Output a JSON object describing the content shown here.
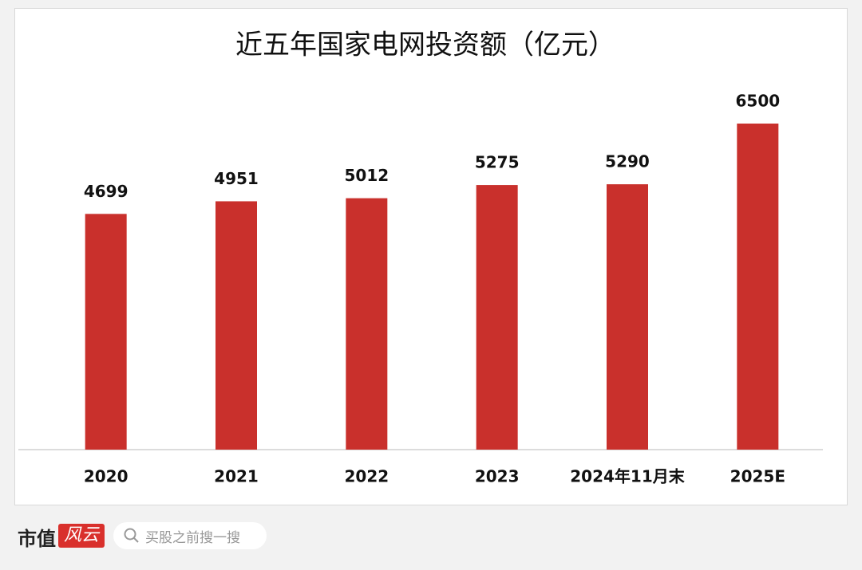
{
  "chart_data": {
    "type": "bar",
    "title": "近五年国家电网投资额（亿元）",
    "categories": [
      "2020",
      "2021",
      "2022",
      "2023",
      "2024年11月末",
      "2025E"
    ],
    "values": [
      4699,
      4951,
      5012,
      5275,
      5290,
      6500
    ],
    "color": "#c9302c",
    "ylim": [
      0,
      6500
    ],
    "grid": false
  },
  "footer": {
    "brand": "市值",
    "logo": "风云",
    "search": "买股之前搜一搜"
  }
}
